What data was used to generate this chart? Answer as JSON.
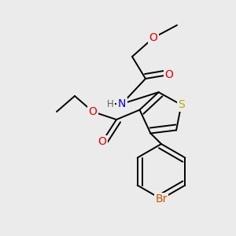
{
  "bg_color": "#ebebeb",
  "atom_colors": {
    "C": "#000000",
    "H": "#606060",
    "N": "#0000ee",
    "O": "#ee0000",
    "S": "#bbaa00",
    "Br": "#cc5500"
  },
  "bond_color": "#000000",
  "bond_width": 1.4,
  "figsize": [
    3.0,
    3.0
  ],
  "dpi": 100
}
